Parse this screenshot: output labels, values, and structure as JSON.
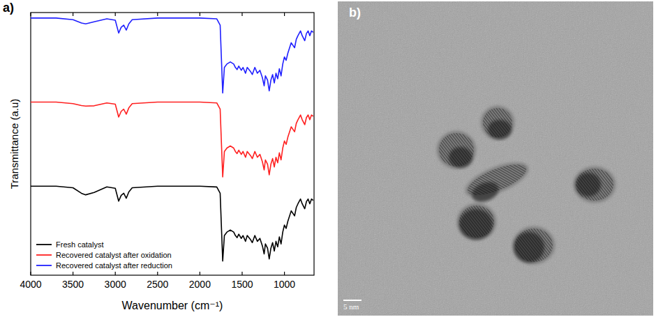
{
  "chart_data": {
    "type": "line",
    "panel_label": "a)",
    "x_label": "Wavenumber (cm⁻¹)",
    "y_label": "Transmittance (a.u)",
    "x": [
      4000,
      3700,
      3500,
      3400,
      3350,
      3250,
      3100,
      3000,
      2960,
      2930,
      2900,
      2870,
      2840,
      2800,
      2500,
      2000,
      1800,
      1760,
      1730,
      1710,
      1680,
      1640,
      1600,
      1580,
      1560,
      1540,
      1510,
      1490,
      1460,
      1440,
      1400,
      1380,
      1350,
      1320,
      1290,
      1260,
      1240,
      1225,
      1200,
      1180,
      1160,
      1140,
      1120,
      1100,
      1080,
      1060,
      1040,
      1020,
      1000,
      980,
      960,
      920,
      880,
      860,
      840,
      810,
      790,
      760,
      740,
      720,
      700,
      680,
      660
    ],
    "series": [
      {
        "name": "Fresh catalyst",
        "color": "#000000",
        "values": [
          33.9,
          33.9,
          33.3,
          31.2,
          30.6,
          31.5,
          33.6,
          33.1,
          28.2,
          30.4,
          31.2,
          29.3,
          31.7,
          33.3,
          33.9,
          33.9,
          33.6,
          31.2,
          5.4,
          15.1,
          16.4,
          17.2,
          16.4,
          15.1,
          14.3,
          15.6,
          14.0,
          15.1,
          12.9,
          15.1,
          13.5,
          12.4,
          15.1,
          12.9,
          14.0,
          11.1,
          8.1,
          11.9,
          10.3,
          6.2,
          10.3,
          12.4,
          9.2,
          12.9,
          10.8,
          14.6,
          11.9,
          16.4,
          19.1,
          17.8,
          20.5,
          24.5,
          22.6,
          25.8,
          27.2,
          29.0,
          27.2,
          25.3,
          28.0,
          29.0,
          27.2,
          29.0,
          28.5
        ]
      },
      {
        "name": "Recovered catalyst after oxidation",
        "color": "#ff2020",
        "values": [
          65.9,
          65.9,
          65.3,
          64.6,
          64.4,
          64.5,
          65.6,
          65.1,
          60.2,
          62.4,
          63.2,
          61.3,
          63.7,
          65.3,
          65.9,
          65.9,
          65.6,
          63.2,
          37.4,
          47.1,
          48.4,
          49.2,
          48.4,
          47.1,
          46.3,
          47.6,
          46.0,
          47.1,
          44.9,
          47.1,
          45.5,
          44.4,
          47.1,
          44.9,
          46.0,
          43.1,
          40.1,
          43.9,
          42.3,
          38.2,
          42.3,
          44.4,
          41.2,
          44.9,
          42.8,
          46.6,
          43.9,
          48.4,
          51.1,
          49.8,
          52.5,
          56.5,
          54.6,
          57.8,
          59.2,
          61.0,
          59.2,
          57.3,
          60.0,
          61.0,
          59.2,
          61.0,
          60.5
        ]
      },
      {
        "name": "Recovered catalyst after reduction",
        "color": "#2020ff",
        "values": [
          97.9,
          97.9,
          97.3,
          96.0,
          95.7,
          96.5,
          97.6,
          97.1,
          92.2,
          94.4,
          95.2,
          93.3,
          95.7,
          97.3,
          97.9,
          97.9,
          97.6,
          95.2,
          69.4,
          79.1,
          80.4,
          81.2,
          80.4,
          79.1,
          78.3,
          79.6,
          78.0,
          79.1,
          76.9,
          79.1,
          77.5,
          76.4,
          79.1,
          76.9,
          78.0,
          75.1,
          72.1,
          75.9,
          74.3,
          70.2,
          74.3,
          76.4,
          73.2,
          76.9,
          74.8,
          78.6,
          75.9,
          80.4,
          83.1,
          81.8,
          84.5,
          88.5,
          86.6,
          89.8,
          91.2,
          93.0,
          91.2,
          89.3,
          92.0,
          93.0,
          91.2,
          93.0,
          92.5
        ]
      }
    ],
    "xlim": [
      4000,
      650
    ],
    "xticks": [
      4000,
      3500,
      3000,
      2500,
      2000,
      1500,
      1000
    ],
    "ylim": [
      0,
      100
    ],
    "tick_labels": "x",
    "legend": "lower left"
  },
  "image_panel": {
    "panel_label": "b)",
    "scale_bar": "5 nm"
  }
}
